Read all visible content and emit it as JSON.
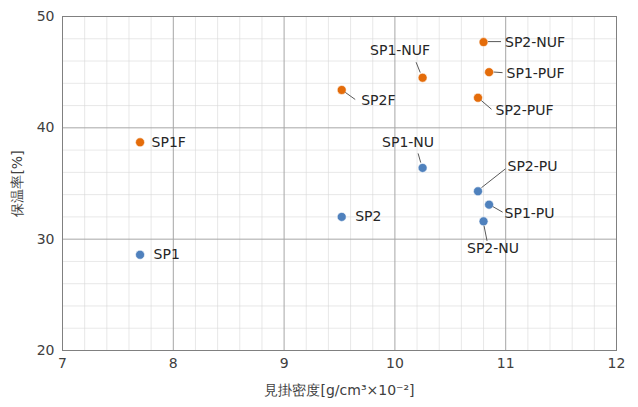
{
  "chart_data": {
    "type": "scatter",
    "x_label": "見掛密度[g/cm³×10⁻²]",
    "y_label": "保温率[%]",
    "labels": [
      "SP1",
      "SP1F",
      "SP2",
      "SP2F",
      "SP1-NU",
      "SP1-NUF",
      "SP2-PU",
      "SP1-PU",
      "SP2-NU",
      "SP2-NUF",
      "SP1-PUF",
      "SP2-PUF"
    ],
    "x": [
      7.7,
      7.7,
      9.52,
      9.52,
      10.25,
      10.25,
      10.75,
      10.85,
      10.8,
      10.8,
      10.85,
      10.75
    ],
    "values": [
      28.6,
      38.7,
      32.0,
      43.4,
      36.4,
      44.5,
      34.3,
      33.1,
      31.6,
      47.7,
      45.0,
      42.7
    ],
    "colors": [
      "#4f81bd",
      "#e46c0a",
      "#4f81bd",
      "#e46c0a",
      "#4f81bd",
      "#e46c0a",
      "#4f81bd",
      "#4f81bd",
      "#4f81bd",
      "#e46c0a",
      "#e46c0a",
      "#e46c0a"
    ],
    "xlim": [
      7,
      12
    ],
    "xticks": [
      7,
      8,
      9,
      10,
      11,
      12
    ],
    "ylim": [
      20,
      50
    ],
    "yticks": [
      20,
      30,
      40,
      50
    ],
    "grid": true,
    "marker": "circle"
  }
}
